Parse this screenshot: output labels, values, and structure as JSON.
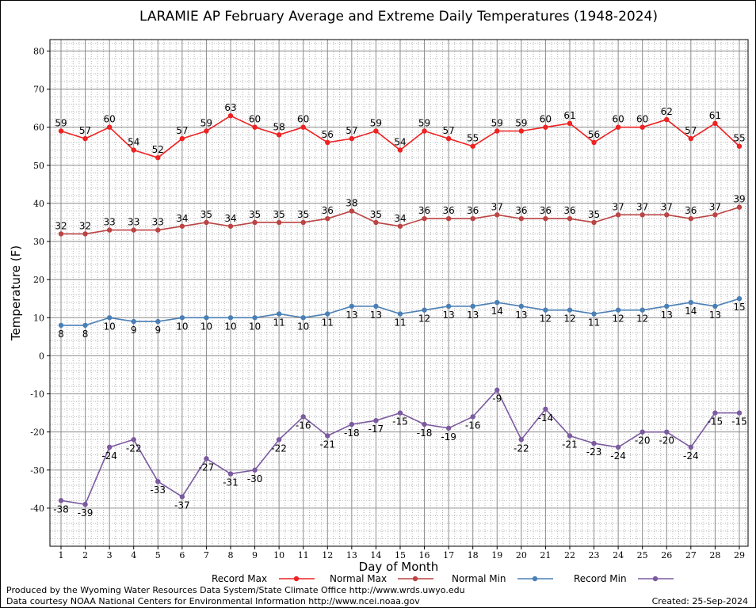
{
  "chart_data": {
    "type": "line",
    "title": "LARAMIE AP February Average and Extreme Daily Temperatures (1948-2024)",
    "xlabel": "Day of Month",
    "ylabel": "Temperature (F)",
    "ylim": [
      -50,
      83
    ],
    "yticks": [
      -40,
      -30,
      -20,
      -10,
      0,
      10,
      20,
      30,
      40,
      50,
      60,
      70,
      80
    ],
    "x": [
      1,
      2,
      3,
      4,
      5,
      6,
      7,
      8,
      9,
      10,
      11,
      12,
      13,
      14,
      15,
      16,
      17,
      18,
      19,
      20,
      21,
      22,
      23,
      24,
      25,
      26,
      27,
      28,
      29
    ],
    "grid": true,
    "legend_position": "bottom",
    "series": [
      {
        "name": "Record Max",
        "color": "#ee2222",
        "label_position": "above",
        "values": [
          59,
          57,
          60,
          54,
          52,
          57,
          59,
          63,
          60,
          58,
          60,
          56,
          57,
          59,
          54,
          59,
          57,
          55,
          59,
          59,
          60,
          61,
          56,
          60,
          60,
          62,
          57,
          61,
          55
        ]
      },
      {
        "name": "Normal Max",
        "color": "#bb4444",
        "label_position": "above",
        "values": [
          32,
          32,
          33,
          33,
          33,
          34,
          35,
          34,
          35,
          35,
          35,
          36,
          38,
          35,
          34,
          36,
          36,
          36,
          37,
          36,
          36,
          36,
          35,
          37,
          37,
          37,
          36,
          37,
          39
        ]
      },
      {
        "name": "Normal Min",
        "color": "#4a7fb5",
        "label_position": "below",
        "values": [
          8,
          8,
          10,
          9,
          9,
          10,
          10,
          10,
          10,
          11,
          10,
          11,
          13,
          13,
          11,
          12,
          13,
          13,
          14,
          13,
          12,
          12,
          11,
          12,
          12,
          13,
          14,
          13,
          15
        ]
      },
      {
        "name": "Record Min",
        "color": "#7b5aa0",
        "label_position": "below",
        "values": [
          -38,
          -39,
          -24,
          -22,
          -33,
          -37,
          -27,
          -31,
          -30,
          -22,
          -16,
          -21,
          -18,
          -17,
          -15,
          -18,
          -19,
          -16,
          -9,
          -22,
          -14,
          -21,
          -23,
          -24,
          -20,
          -20,
          -24,
          -15,
          -15
        ]
      }
    ]
  },
  "footer": {
    "produced_by": "Produced by the Wyoming Water Resources Data System/State Climate Office http://www.wrds.uwyo.edu",
    "courtesy": "Data courtesy NOAA National Centers for Environmental Information http://www.ncei.noaa.gov",
    "created": "Created: 25-Sep-2024"
  }
}
